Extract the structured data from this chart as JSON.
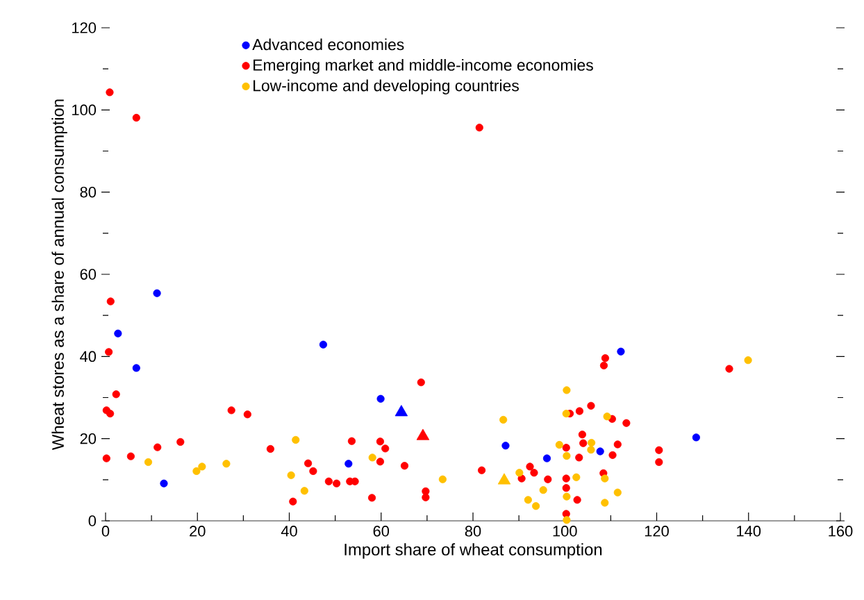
{
  "chart_data": {
    "type": "scatter",
    "xlabel": "Import share of wheat consumption",
    "ylabel": "Wheat stores as a share of annual consumption",
    "xlim": [
      0,
      160
    ],
    "xticks": [
      0,
      20,
      40,
      60,
      80,
      100,
      120,
      140,
      160
    ],
    "ylim": [
      0,
      120
    ],
    "yticks": [
      0,
      20,
      40,
      60,
      80,
      100,
      120
    ],
    "grid": false,
    "legend": "top",
    "marker": "circle",
    "series": [
      {
        "name": "Advanced economies",
        "color": "#0000ff",
        "x": [
          2.7,
          11.2,
          6.7,
          12.7,
          47.4,
          59.9,
          52.9,
          87.1,
          96.1,
          107.7,
          112.2,
          128.6
        ],
        "values": [
          45.6,
          55.4,
          37.2,
          9.1,
          42.9,
          29.7,
          13.9,
          18.3,
          15.2,
          16.9,
          41.2,
          20.3
        ]
      },
      {
        "name": "Emerging market and middle-income economies",
        "color": "#ff0000",
        "x": [
          0.9,
          6.7,
          1.1,
          0.7,
          2.3,
          0.2,
          1.0,
          0.2,
          5.5,
          11.3,
          16.3,
          27.4,
          30.9,
          35.9,
          40.8,
          44.1,
          45.2,
          48.6,
          50.3,
          53.6,
          53.2,
          54.3,
          58.0,
          59.8,
          60.9,
          59.8,
          65.1,
          68.7,
          69.7,
          69.7,
          81.9,
          81.4,
          90.6,
          92.4,
          93.3,
          96.3,
          100.3,
          100.3,
          100.3,
          100.3,
          101.1,
          103.2,
          105.7,
          103.8,
          104.0,
          103.1,
          102.7,
          108.4,
          108.8,
          108.5,
          110.3,
          113.4,
          111.5,
          110.4,
          120.5,
          120.5,
          135.8
        ],
        "values": [
          104.3,
          98.1,
          53.4,
          41.1,
          30.8,
          26.9,
          26.1,
          15.2,
          15.7,
          17.9,
          19.2,
          26.9,
          25.9,
          17.5,
          4.7,
          14.0,
          12.1,
          9.6,
          9.1,
          19.4,
          9.6,
          9.6,
          5.6,
          19.3,
          17.6,
          14.4,
          13.4,
          33.7,
          7.2,
          5.7,
          12.3,
          95.7,
          10.3,
          13.2,
          11.7,
          10.1,
          17.8,
          10.3,
          8.0,
          1.7,
          26.1,
          26.7,
          28.0,
          21.0,
          18.9,
          15.4,
          5.1,
          11.6,
          39.6,
          37.8,
          24.8,
          23.8,
          18.6,
          16.0,
          17.2,
          14.3,
          37.0
        ]
      },
      {
        "name": "Low-income and developing countries",
        "color": "#ffc000",
        "x": [
          9.3,
          19.8,
          21.0,
          26.3,
          41.4,
          40.4,
          43.3,
          58.1,
          73.4,
          86.6,
          90.1,
          92.0,
          93.7,
          95.3,
          98.8,
          100.4,
          100.3,
          100.4,
          100.4,
          102.5,
          100.4,
          105.8,
          105.7,
          109.2,
          108.7,
          108.7,
          111.5,
          139.9
        ],
        "values": [
          14.3,
          12.1,
          13.2,
          13.9,
          19.7,
          11.1,
          7.3,
          15.4,
          10.1,
          24.6,
          11.7,
          5.1,
          3.6,
          7.5,
          18.5,
          31.8,
          26.1,
          15.8,
          5.9,
          10.6,
          0.2,
          19.0,
          17.3,
          25.4,
          10.3,
          4.4,
          6.9,
          39.1
        ]
      },
      {
        "color": "#0000ff",
        "marker": "triangle",
        "x": [
          64.4
        ],
        "values": [
          26.4
        ]
      },
      {
        "color": "#ff0000",
        "marker": "triangle",
        "x": [
          69.1
        ],
        "values": [
          20.6
        ]
      },
      {
        "color": "#ffc000",
        "marker": "triangle",
        "x": [
          86.8
        ],
        "values": [
          9.8
        ]
      }
    ]
  }
}
